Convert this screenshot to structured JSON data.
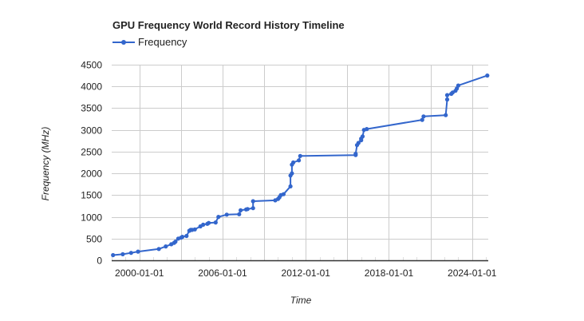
{
  "chart_data": {
    "type": "line",
    "title": "GPU Frequency World Record History Timeline",
    "xlabel": "Time",
    "ylabel": "Frequency (MHz)",
    "legend": {
      "position": "top",
      "entries": [
        "Frequency"
      ]
    },
    "grid": true,
    "ylim": [
      0,
      4500
    ],
    "yticks": [
      0,
      500,
      1000,
      1500,
      2000,
      2500,
      3000,
      3500,
      4000,
      4500
    ],
    "xlim": [
      "1998-01-01",
      "2025-03-01"
    ],
    "xticks": [
      "2000-01-01",
      "2006-01-01",
      "2012-01-01",
      "2018-01-01",
      "2024-01-01"
    ],
    "line_color": "#3366cc",
    "series": [
      {
        "name": "Frequency",
        "x": [
          1998.1,
          1998.8,
          1999.4,
          1999.9,
          2001.4,
          2001.9,
          2002.3,
          2002.5,
          2002.6,
          2002.8,
          2003.0,
          2003.1,
          2003.4,
          2003.6,
          2003.7,
          2003.8,
          2004.0,
          2004.4,
          2004.6,
          2004.9,
          2005.0,
          2005.5,
          2005.7,
          2006.3,
          2007.2,
          2007.3,
          2007.7,
          2007.8,
          2008.2,
          2008.2,
          2009.8,
          2010.0,
          2010.1,
          2010.2,
          2010.4,
          2010.9,
          2010.9,
          2011.0,
          2011.0,
          2011.1,
          2011.5,
          2011.6,
          2015.6,
          2015.6,
          2015.7,
          2015.8,
          2016.0,
          2016.0,
          2016.1,
          2016.2,
          2016.4,
          2020.4,
          2020.5,
          2022.1,
          2022.2,
          2022.2,
          2022.5,
          2022.6,
          2022.8,
          2022.9,
          2023.0,
          2025.1
        ],
        "values": [
          120,
          140,
          170,
          200,
          260,
          320,
          370,
          400,
          430,
          500,
          520,
          540,
          560,
          680,
          700,
          700,
          710,
          780,
          820,
          840,
          860,
          870,
          1000,
          1050,
          1060,
          1150,
          1170,
          1180,
          1200,
          1360,
          1380,
          1410,
          1450,
          1500,
          1520,
          1700,
          1950,
          2000,
          2200,
          2250,
          2300,
          2400,
          2420,
          2450,
          2650,
          2700,
          2760,
          2800,
          2850,
          3000,
          3020,
          3230,
          3310,
          3340,
          3700,
          3800,
          3830,
          3860,
          3900,
          3950,
          4020,
          4250
        ]
      }
    ]
  }
}
